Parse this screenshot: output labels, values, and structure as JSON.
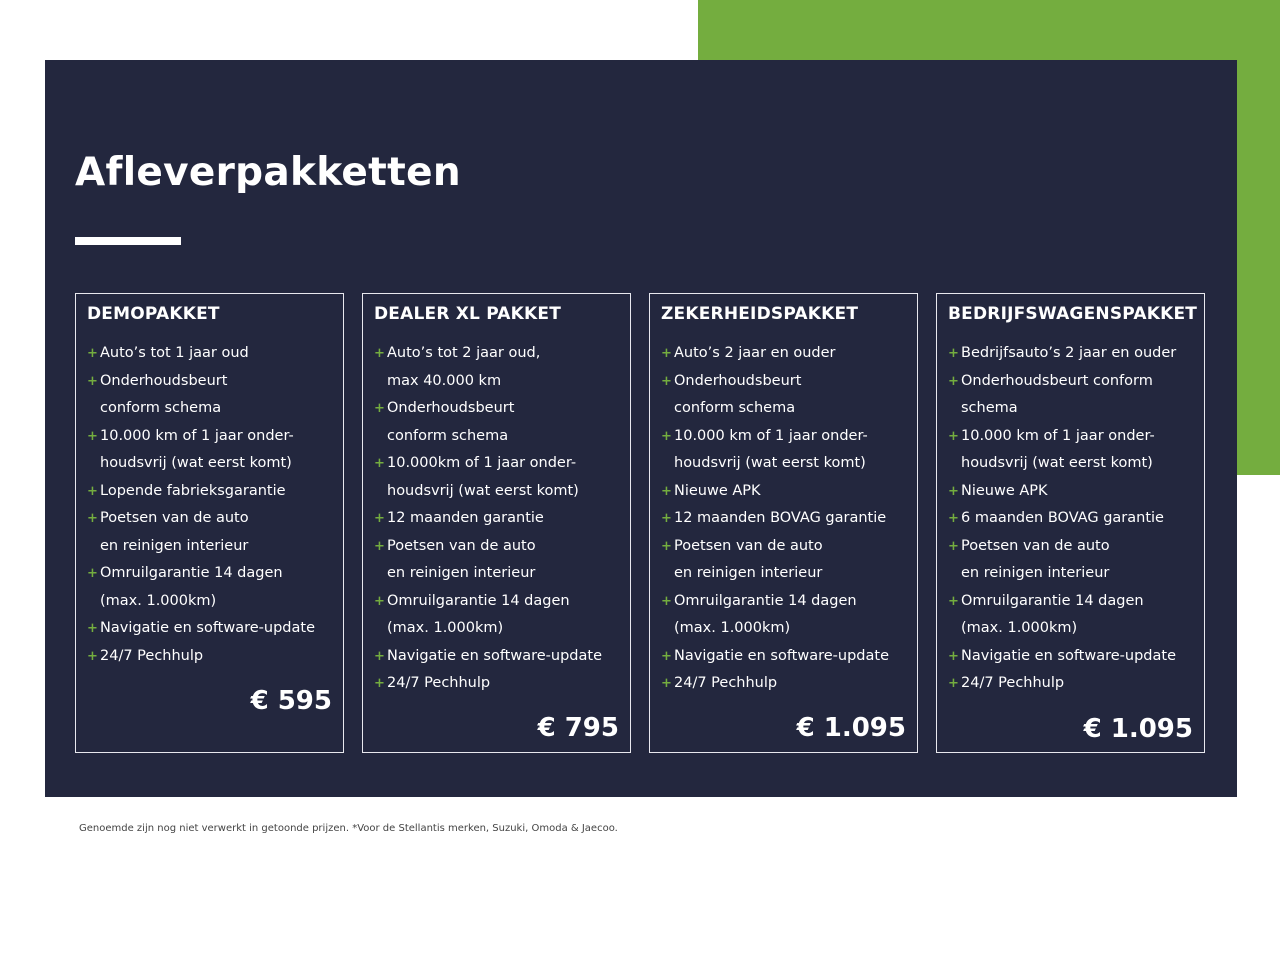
{
  "title": "Afleverpakketten",
  "colors": {
    "navy": "#23273e",
    "green": "#74ad3f"
  },
  "cards": [
    {
      "name": "DEMOPAKKET",
      "price": "€ 595",
      "items": [
        {
          "lines": [
            "Auto’s tot 1 jaar oud"
          ]
        },
        {
          "lines": [
            "Onderhoudsbeurt",
            "conform schema"
          ]
        },
        {
          "lines": [
            "10.000 km of 1 jaar onder-",
            "houdsvrij (wat eerst komt)"
          ]
        },
        {
          "lines": [
            "Lopende fabrieksgarantie"
          ]
        },
        {
          "lines": [
            "Poetsen van de auto",
            "en reinigen interieur"
          ]
        },
        {
          "lines": [
            "Omruilgarantie 14 dagen",
            "(max. 1.000km)"
          ]
        },
        {
          "lines": [
            "Navigatie en software-update"
          ],
          "sup": "*"
        },
        {
          "lines": [
            "24/7 Pechhulp"
          ]
        }
      ]
    },
    {
      "name": "DEALER XL PAKKET",
      "price": "€ 795",
      "items": [
        {
          "lines": [
            "Auto’s tot 2 jaar oud,",
            "max 40.000 km"
          ]
        },
        {
          "lines": [
            "Onderhoudsbeurt",
            "conform schema"
          ]
        },
        {
          "lines": [
            "10.000km of 1 jaar onder-",
            "houdsvrij (wat eerst komt)"
          ]
        },
        {
          "lines": [
            "12 maanden garantie"
          ]
        },
        {
          "lines": [
            "Poetsen van de auto",
            "en reinigen interieur"
          ]
        },
        {
          "lines": [
            "Omruilgarantie 14 dagen",
            "(max. 1.000km)"
          ]
        },
        {
          "lines": [
            "Navigatie en software-update"
          ],
          "sup": "*"
        },
        {
          "lines": [
            "24/7 Pechhulp"
          ]
        }
      ]
    },
    {
      "name": "ZEKERHEIDSPAKKET",
      "price": "€ 1.095",
      "items": [
        {
          "lines": [
            "Auto’s 2 jaar en ouder"
          ]
        },
        {
          "lines": [
            "Onderhoudsbeurt",
            "conform schema"
          ]
        },
        {
          "lines": [
            "10.000 km of 1 jaar onder-",
            "houdsvrij (wat eerst komt)"
          ]
        },
        {
          "lines": [
            "Nieuwe APK"
          ]
        },
        {
          "lines": [
            "12 maanden BOVAG garantie"
          ]
        },
        {
          "lines": [
            "Poetsen van de auto",
            "en reinigen interieur"
          ]
        },
        {
          "lines": [
            "Omruilgarantie 14 dagen",
            "(max. 1.000km)"
          ]
        },
        {
          "lines": [
            "Navigatie en software-update"
          ],
          "sup": "*"
        },
        {
          "lines": [
            "24/7 Pechhulp"
          ]
        }
      ]
    },
    {
      "name": "BEDRIJFSWAGENSPAKKET",
      "price": "€ 1.095",
      "items": [
        {
          "lines": [
            "Bedrijfsauto’s 2 jaar en ouder"
          ]
        },
        {
          "lines": [
            "Onderhoudsbeurt conform",
            "schema"
          ]
        },
        {
          "lines": [
            "10.000 km of 1 jaar onder-",
            "houdsvrij (wat eerst komt)"
          ]
        },
        {
          "lines": [
            "Nieuwe APK"
          ]
        },
        {
          "lines": [
            "6 maanden BOVAG garantie"
          ]
        },
        {
          "lines": [
            "Poetsen van de auto",
            "en reinigen interieur"
          ]
        },
        {
          "lines": [
            "Omruilgarantie 14 dagen",
            "(max. 1.000km)"
          ]
        },
        {
          "lines": [
            "Navigatie en software-update"
          ],
          "sup": "*"
        },
        {
          "lines": [
            "24/7 Pechhulp"
          ]
        }
      ]
    }
  ],
  "footnote": "Genoemde zijn nog niet verwerkt in getoonde prijzen. *Voor de Stellantis merken, Suzuki, Omoda & Jaecoo."
}
